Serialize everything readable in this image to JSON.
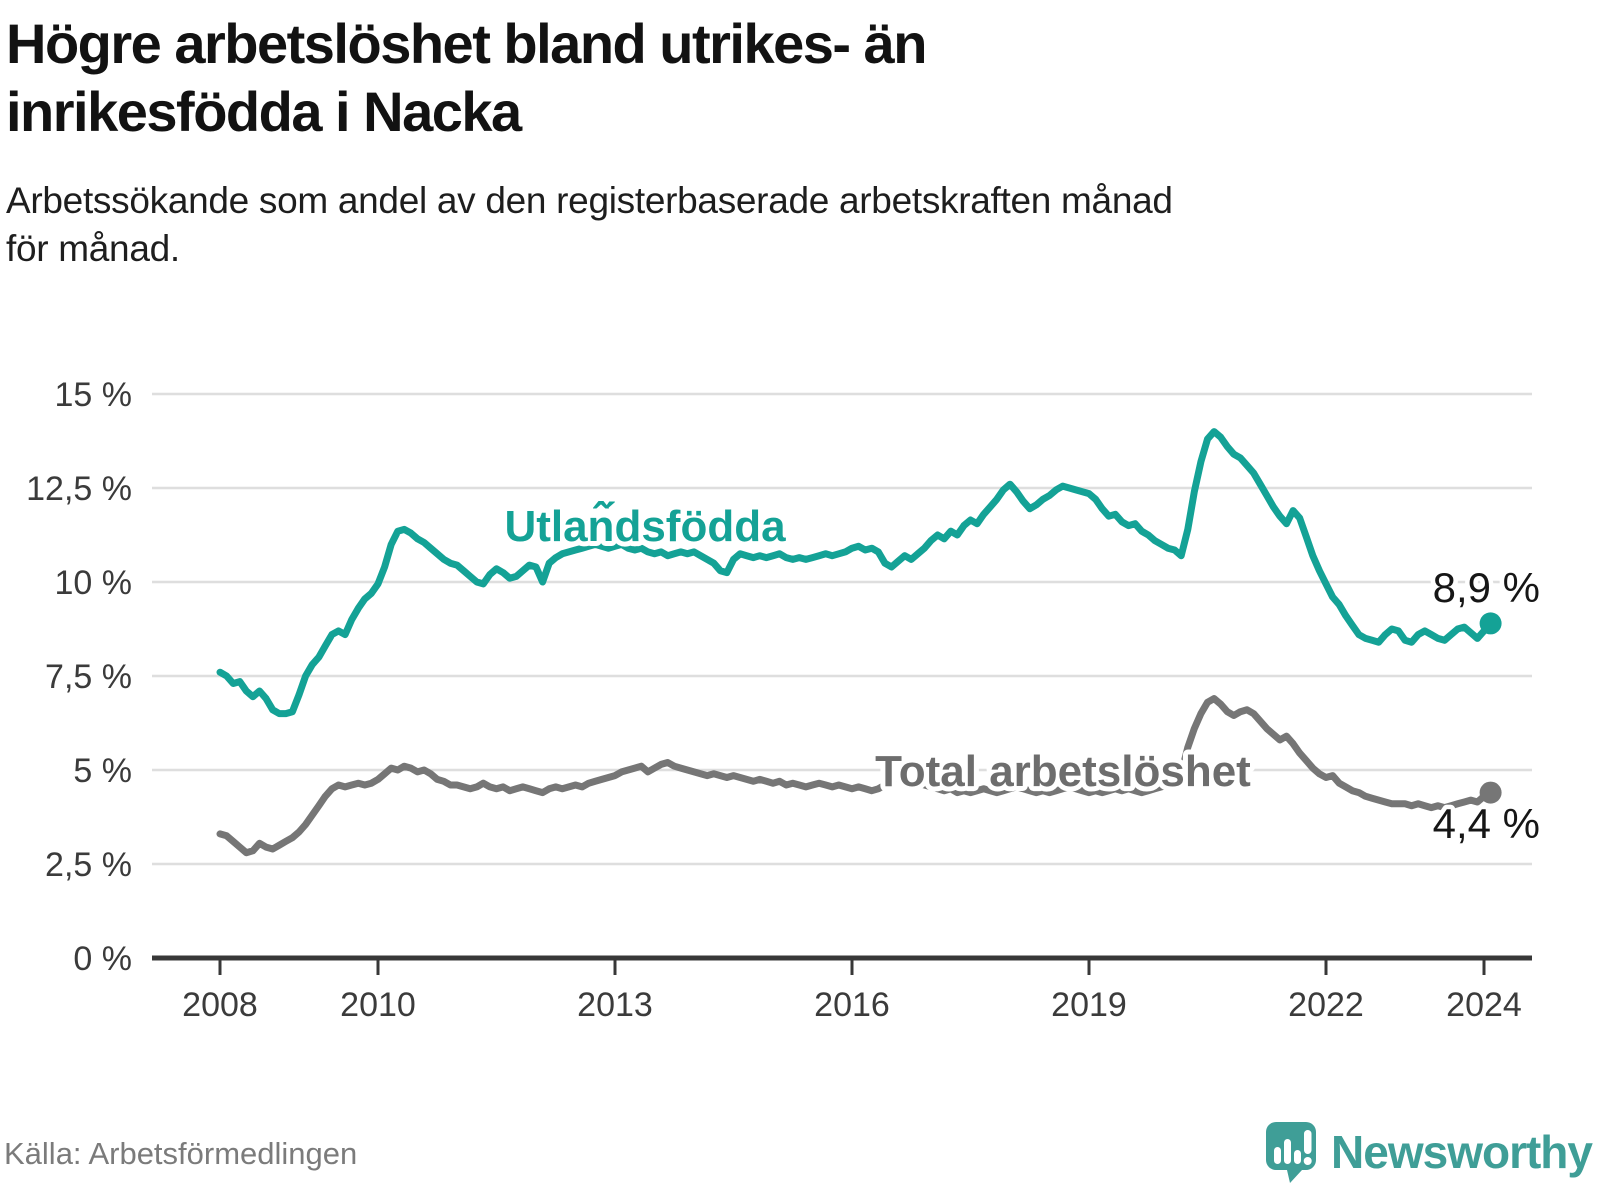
{
  "header": {
    "title": "Högre arbetslöshet bland utrikes- än\ninrikesfödda i Nacka",
    "subtitle": "Arbetssökande som andel av den registerbaserade arbetskraften månad\nför månad."
  },
  "footer": {
    "source": "Källa: Arbetsförmedlingen",
    "brand": "Newsworthy",
    "logo_icon": "newsworthy-speech-bubble-bar-chart-icon"
  },
  "colors": {
    "teal_line": "#14a296",
    "gray_line": "#767676",
    "gray_label": "#6d6d6d",
    "value_label": "#161616",
    "axis_text": "#3b3b3b",
    "gridline": "#dedede",
    "axis_line": "#383838",
    "logo_teal": "#3f9e97",
    "source_text": "#7b7b7b"
  },
  "chart_data": {
    "type": "line",
    "title": "Högre arbetslöshet bland utrikes- än inrikesfödda i Nacka",
    "subtitle": "Arbetssökande som andel av den registerbaserade arbetskraften månad för månad.",
    "unit": "%",
    "x_start_year": 2008,
    "x_step_months": 1,
    "xlim": [
      2007.15,
      2024.6
    ],
    "ylim": [
      0,
      15.5
    ],
    "grid": "horizontal",
    "legend_position": "inline-labels",
    "x_ticks": [
      {
        "value": 2008,
        "label": "2008"
      },
      {
        "value": 2010,
        "label": "2010"
      },
      {
        "value": 2013,
        "label": "2013"
      },
      {
        "value": 2016,
        "label": "2016"
      },
      {
        "value": 2019,
        "label": "2019"
      },
      {
        "value": 2022,
        "label": "2022"
      },
      {
        "value": 2024,
        "label": "2024"
      }
    ],
    "y_ticks": [
      {
        "value": 15,
        "label": "15 %"
      },
      {
        "value": 12.5,
        "label": "12,5 %"
      },
      {
        "value": 10,
        "label": "10 %"
      },
      {
        "value": 7.5,
        "label": "7,5 %"
      },
      {
        "value": 5,
        "label": "5 %"
      },
      {
        "value": 2.5,
        "label": "2,5 %"
      },
      {
        "value": 0,
        "label": "0 %"
      }
    ],
    "series": [
      {
        "name": "Utlan̂́dsfödda",
        "color": "#14a296",
        "end_label": "8,9 %",
        "end_value": 8.9,
        "values": [
          7.6,
          7.5,
          7.3,
          7.35,
          7.1,
          6.95,
          7.1,
          6.9,
          6.6,
          6.5,
          6.5,
          6.55,
          7.0,
          7.5,
          7.8,
          8.0,
          8.3,
          8.6,
          8.7,
          8.6,
          9.0,
          9.3,
          9.55,
          9.7,
          9.95,
          10.4,
          11.0,
          11.35,
          11.4,
          11.3,
          11.15,
          11.05,
          10.9,
          10.75,
          10.6,
          10.5,
          10.45,
          10.3,
          10.15,
          10.0,
          9.95,
          10.2,
          10.35,
          10.25,
          10.1,
          10.15,
          10.3,
          10.45,
          10.4,
          10.0,
          10.5,
          10.65,
          10.75,
          10.8,
          10.85,
          10.9,
          10.95,
          11.0,
          10.95,
          10.9,
          10.95,
          11.0,
          10.9,
          10.85,
          10.9,
          10.8,
          10.75,
          10.8,
          10.7,
          10.75,
          10.8,
          10.75,
          10.8,
          10.7,
          10.6,
          10.5,
          10.3,
          10.25,
          10.6,
          10.75,
          10.7,
          10.65,
          10.7,
          10.65,
          10.7,
          10.75,
          10.65,
          10.6,
          10.65,
          10.6,
          10.65,
          10.7,
          10.75,
          10.7,
          10.75,
          10.8,
          10.9,
          10.95,
          10.85,
          10.9,
          10.8,
          10.5,
          10.4,
          10.55,
          10.7,
          10.6,
          10.75,
          10.9,
          11.1,
          11.25,
          11.15,
          11.35,
          11.25,
          11.5,
          11.65,
          11.55,
          11.8,
          12.0,
          12.2,
          12.45,
          12.6,
          12.4,
          12.15,
          11.95,
          12.05,
          12.2,
          12.3,
          12.45,
          12.55,
          12.5,
          12.45,
          12.4,
          12.35,
          12.2,
          11.95,
          11.75,
          11.8,
          11.6,
          11.5,
          11.55,
          11.35,
          11.25,
          11.1,
          11.0,
          10.9,
          10.85,
          10.7,
          11.4,
          12.4,
          13.2,
          13.8,
          14.0,
          13.85,
          13.6,
          13.4,
          13.3,
          13.1,
          12.9,
          12.6,
          12.3,
          12.0,
          11.75,
          11.55,
          11.9,
          11.7,
          11.2,
          10.7,
          10.3,
          9.95,
          9.6,
          9.4,
          9.1,
          8.85,
          8.6,
          8.5,
          8.45,
          8.4,
          8.6,
          8.75,
          8.7,
          8.45,
          8.4,
          8.6,
          8.7,
          8.6,
          8.5,
          8.45,
          8.6,
          8.75,
          8.8,
          8.65,
          8.5,
          8.7,
          8.9
        ]
      },
      {
        "name": "Total arbetslöshet",
        "color": "#767676",
        "end_label": "4,4 %",
        "end_value": 4.4,
        "values": [
          3.3,
          3.25,
          3.1,
          2.95,
          2.8,
          2.85,
          3.05,
          2.95,
          2.9,
          3.0,
          3.1,
          3.2,
          3.35,
          3.55,
          3.8,
          4.05,
          4.3,
          4.5,
          4.6,
          4.55,
          4.6,
          4.65,
          4.6,
          4.65,
          4.75,
          4.9,
          5.05,
          5.0,
          5.1,
          5.05,
          4.95,
          5.0,
          4.9,
          4.75,
          4.7,
          4.6,
          4.6,
          4.55,
          4.5,
          4.55,
          4.65,
          4.55,
          4.5,
          4.55,
          4.45,
          4.5,
          4.55,
          4.5,
          4.45,
          4.4,
          4.5,
          4.55,
          4.5,
          4.55,
          4.6,
          4.55,
          4.65,
          4.7,
          4.75,
          4.8,
          4.85,
          4.95,
          5.0,
          5.05,
          5.1,
          4.95,
          5.05,
          5.15,
          5.2,
          5.1,
          5.05,
          5.0,
          4.95,
          4.9,
          4.85,
          4.9,
          4.85,
          4.8,
          4.85,
          4.8,
          4.75,
          4.7,
          4.75,
          4.7,
          4.65,
          4.7,
          4.6,
          4.65,
          4.6,
          4.55,
          4.6,
          4.65,
          4.6,
          4.55,
          4.6,
          4.55,
          4.5,
          4.55,
          4.5,
          4.45,
          4.5,
          4.6,
          4.75,
          4.8,
          4.75,
          4.7,
          4.65,
          4.6,
          4.55,
          4.5,
          4.45,
          4.5,
          4.4,
          4.45,
          4.4,
          4.45,
          4.5,
          4.45,
          4.4,
          4.45,
          4.5,
          4.55,
          4.5,
          4.45,
          4.4,
          4.45,
          4.4,
          4.45,
          4.5,
          4.55,
          4.5,
          4.45,
          4.4,
          4.45,
          4.4,
          4.45,
          4.5,
          4.45,
          4.5,
          4.45,
          4.4,
          4.45,
          4.5,
          4.55,
          4.6,
          4.7,
          4.9,
          5.6,
          6.1,
          6.5,
          6.8,
          6.9,
          6.75,
          6.55,
          6.45,
          6.55,
          6.6,
          6.5,
          6.3,
          6.1,
          5.95,
          5.8,
          5.9,
          5.7,
          5.45,
          5.25,
          5.05,
          4.9,
          4.8,
          4.85,
          4.65,
          4.55,
          4.45,
          4.4,
          4.3,
          4.25,
          4.2,
          4.15,
          4.1,
          4.1,
          4.1,
          4.05,
          4.1,
          4.05,
          4.0,
          4.05,
          4.0,
          4.05,
          4.1,
          4.15,
          4.2,
          4.15,
          4.3,
          4.4
        ]
      }
    ]
  }
}
